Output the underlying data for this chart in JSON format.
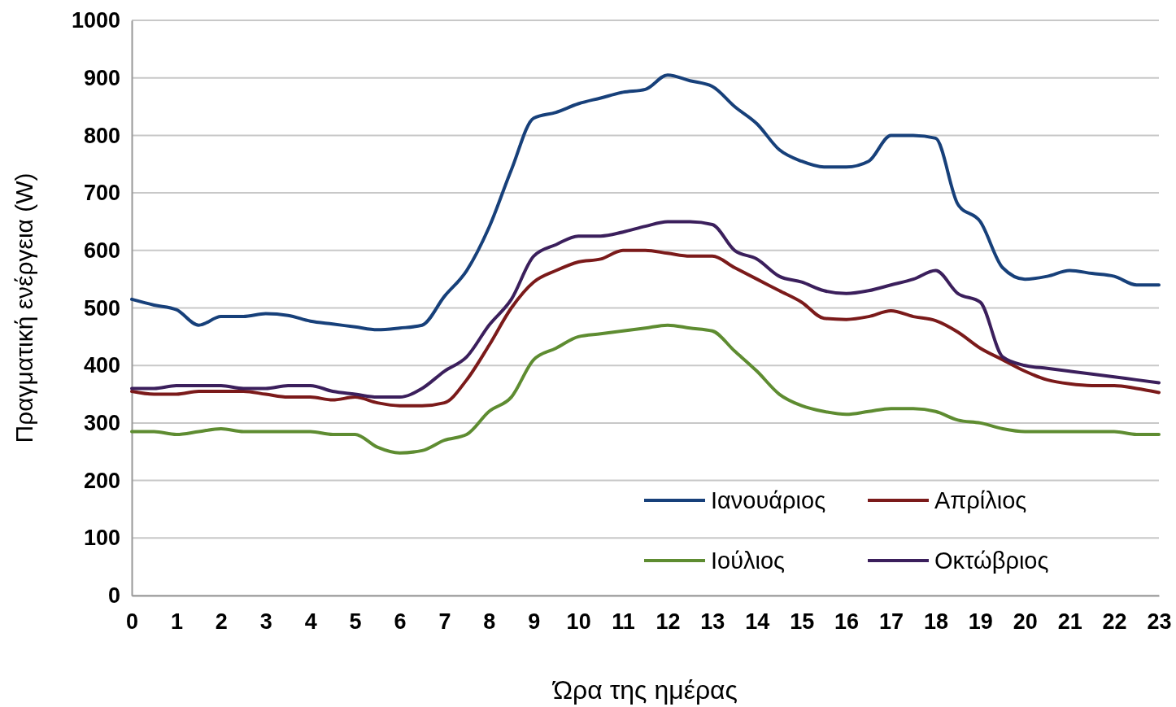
{
  "chart_data": {
    "type": "line",
    "xlabel": "Ώρα της ημέρας",
    "ylabel": "Πραγματική ενέργεια (W)",
    "x": [
      0,
      0.5,
      1,
      1.5,
      2,
      2.5,
      3,
      3.5,
      4,
      4.5,
      5,
      5.5,
      6,
      6.5,
      7,
      7.5,
      8,
      8.5,
      9,
      9.5,
      10,
      10.5,
      11,
      11.5,
      12,
      12.5,
      13,
      13.5,
      14,
      14.5,
      15,
      15.5,
      16,
      16.5,
      17,
      17.5,
      18,
      18.5,
      19,
      19.5,
      20,
      20.5,
      21,
      21.5,
      22,
      22.5,
      23
    ],
    "xlim": [
      0,
      23
    ],
    "xticks": [
      0,
      1,
      2,
      3,
      4,
      5,
      6,
      7,
      8,
      9,
      10,
      11,
      12,
      13,
      14,
      15,
      16,
      17,
      18,
      19,
      20,
      21,
      22,
      23
    ],
    "ylim": [
      0,
      1000
    ],
    "yticks": [
      0,
      100,
      200,
      300,
      400,
      500,
      600,
      700,
      800,
      900,
      1000
    ],
    "grid": "y",
    "legend": "bottom right",
    "marker": "none",
    "line_style": "solid",
    "series": [
      {
        "name": "Ιανουάριος",
        "color": "#17407a",
        "values": [
          515,
          505,
          497,
          470,
          485,
          485,
          490,
          487,
          477,
          472,
          467,
          462,
          465,
          470,
          520,
          565,
          640,
          740,
          830,
          840,
          855,
          865,
          875,
          880,
          905,
          895,
          885,
          850,
          820,
          775,
          755,
          745,
          745,
          755,
          800,
          800,
          795,
          680,
          650,
          570,
          550,
          555,
          565,
          560,
          555,
          540,
          540
        ]
      },
      {
        "name": "Απρίλιος",
        "color": "#7b1a1a",
        "values": [
          355,
          350,
          350,
          355,
          355,
          355,
          350,
          345,
          345,
          340,
          345,
          335,
          330,
          330,
          335,
          375,
          435,
          500,
          545,
          565,
          580,
          585,
          600,
          600,
          595,
          590,
          590,
          570,
          550,
          530,
          510,
          482,
          480,
          485,
          495,
          485,
          478,
          458,
          430,
          410,
          390,
          375,
          368,
          365,
          365,
          360,
          353
        ]
      },
      {
        "name": "Ιούλιος",
        "color": "#5e8c31",
        "values": [
          285,
          285,
          280,
          285,
          290,
          285,
          285,
          285,
          285,
          280,
          280,
          258,
          248,
          252,
          270,
          280,
          320,
          345,
          410,
          430,
          450,
          455,
          460,
          465,
          470,
          465,
          460,
          425,
          390,
          350,
          330,
          320,
          315,
          320,
          325,
          325,
          320,
          305,
          300,
          290,
          285,
          285,
          285,
          285,
          285,
          280,
          280
        ]
      },
      {
        "name": "Οκτώβριος",
        "color": "#3b1f5c",
        "values": [
          360,
          360,
          365,
          365,
          365,
          360,
          360,
          365,
          365,
          355,
          350,
          345,
          345,
          360,
          390,
          415,
          470,
          515,
          590,
          610,
          625,
          625,
          632,
          642,
          650,
          650,
          645,
          600,
          585,
          555,
          545,
          530,
          525,
          530,
          540,
          550,
          565,
          525,
          510,
          415,
          400,
          395,
          390,
          385,
          380,
          375,
          370
        ]
      }
    ]
  }
}
